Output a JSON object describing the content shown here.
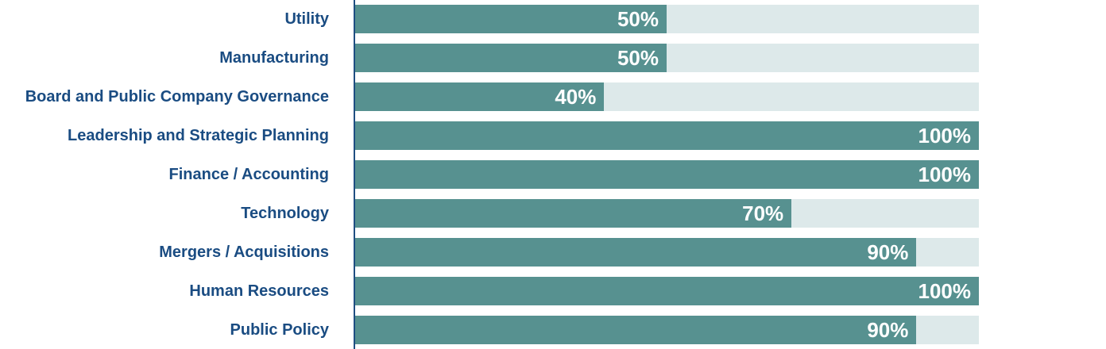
{
  "chart_data": {
    "type": "bar",
    "orientation": "horizontal",
    "categories": [
      "Utility",
      "Manufacturing",
      "Board and Public Company Governance",
      "Leadership and Strategic Planning",
      "Finance / Accounting",
      "Technology",
      "Mergers / Acquisitions",
      "Human Resources",
      "Public Policy"
    ],
    "values": [
      50,
      50,
      40,
      100,
      100,
      70,
      90,
      100,
      90
    ],
    "value_labels": [
      "50%",
      "50%",
      "40%",
      "100%",
      "100%",
      "70%",
      "90%",
      "100%",
      "90%"
    ],
    "xlim": [
      0,
      100
    ],
    "grid": false,
    "legend": "none",
    "colors": {
      "bar_fill": "#579190",
      "bar_track": "#dde9ea",
      "label_text": "#1a4c82",
      "value_text": "#ffffff",
      "axis_line": "#1f4e82",
      "background": "#ffffff"
    }
  }
}
